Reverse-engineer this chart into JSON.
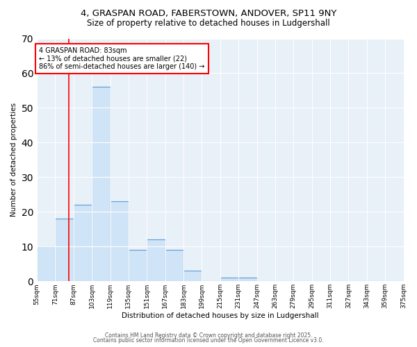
{
  "title": "4, GRASPAN ROAD, FABERSTOWN, ANDOVER, SP11 9NY",
  "subtitle": "Size of property relative to detached houses in Ludgershall",
  "xlabel": "Distribution of detached houses by size in Ludgershall",
  "ylabel": "Number of detached properties",
  "bin_labels": [
    "55sqm",
    "71sqm",
    "87sqm",
    "103sqm",
    "119sqm",
    "135sqm",
    "151sqm",
    "167sqm",
    "183sqm",
    "199sqm",
    "215sqm",
    "231sqm",
    "247sqm",
    "263sqm",
    "279sqm",
    "295sqm",
    "311sqm",
    "327sqm",
    "343sqm",
    "359sqm",
    "375sqm"
  ],
  "bin_edges": [
    55,
    71,
    87,
    103,
    119,
    135,
    151,
    167,
    183,
    199,
    215,
    231,
    247,
    263,
    279,
    295,
    311,
    327,
    343,
    359,
    375
  ],
  "bar_heights": [
    10,
    18,
    22,
    56,
    23,
    9,
    12,
    9,
    3,
    0,
    1,
    1,
    0,
    0,
    0,
    0,
    0,
    0,
    0,
    0
  ],
  "bar_color": "#d0e4f7",
  "bar_edge_color": "#5b9bd5",
  "red_line_x": 83,
  "annotation_text": "4 GRASPAN ROAD: 83sqm\n← 13% of detached houses are smaller (22)\n86% of semi-detached houses are larger (140) →",
  "annotation_box_color": "white",
  "annotation_box_edge_color": "red",
  "ylim": [
    0,
    70
  ],
  "background_color": "#e8f0f8",
  "grid_color": "white",
  "footer_line1": "Contains HM Land Registry data © Crown copyright and database right 2025.",
  "footer_line2": "Contains public sector information licensed under the Open Government Licence v3.0."
}
